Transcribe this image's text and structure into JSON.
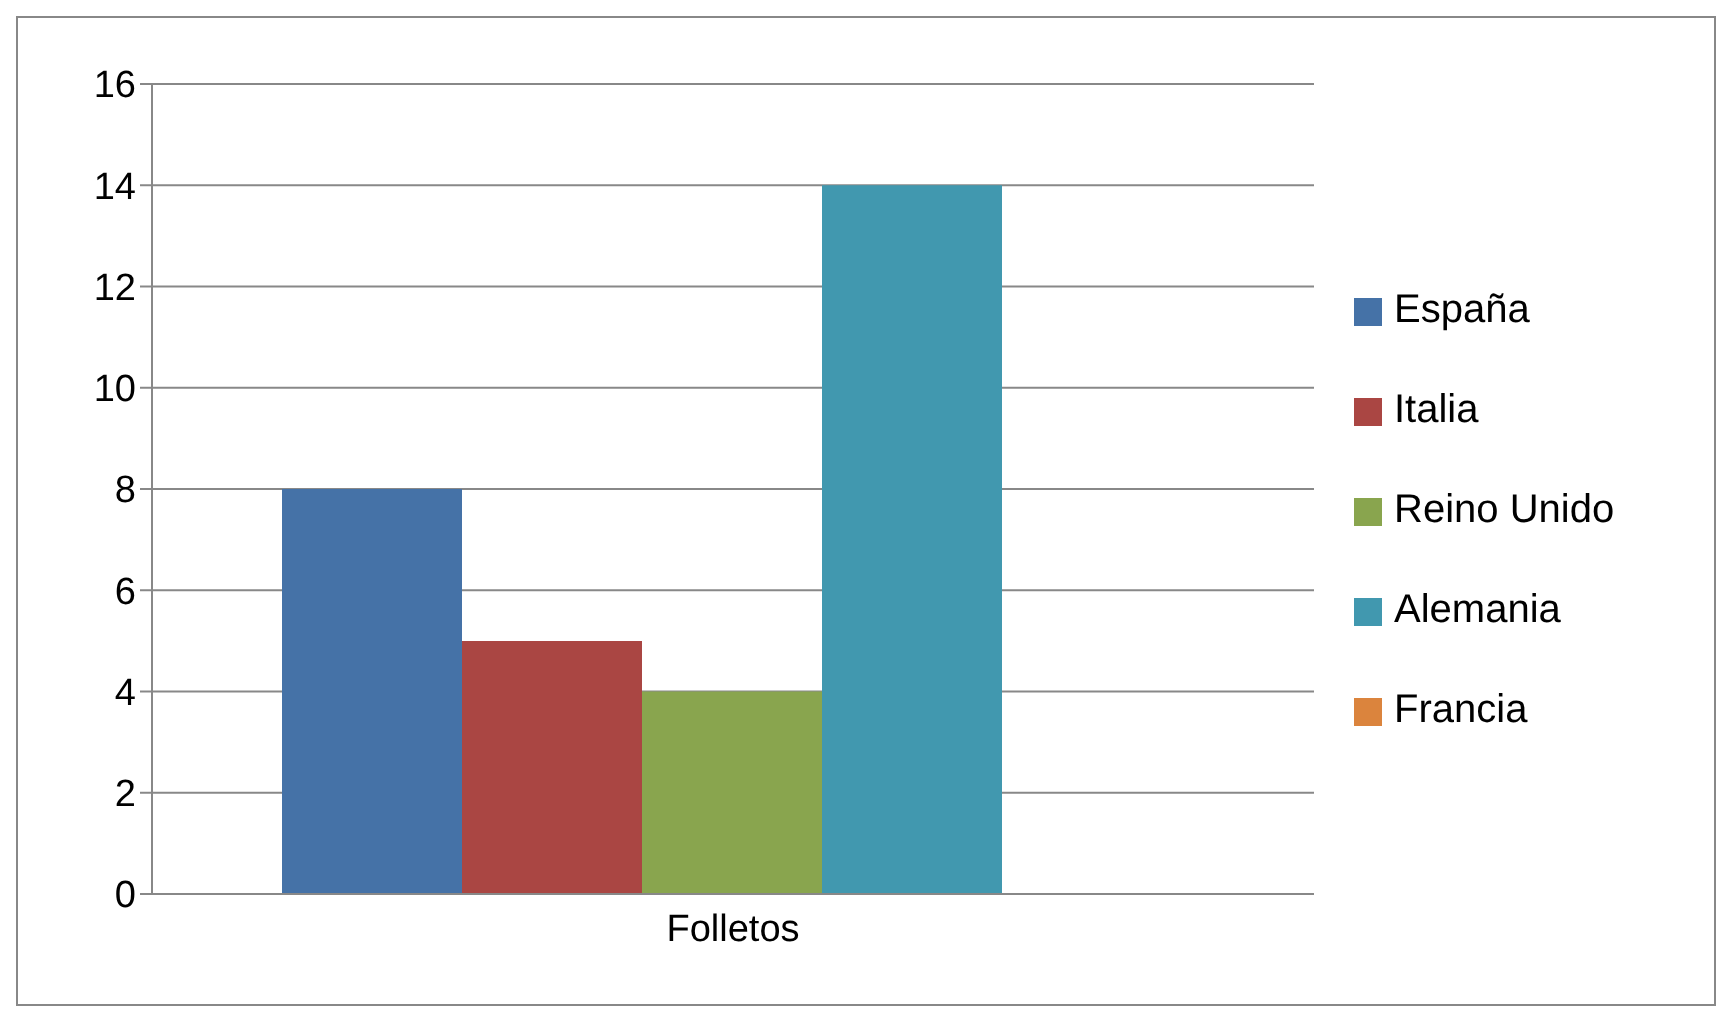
{
  "chart_data": {
    "type": "bar",
    "categories": [
      "Folletos"
    ],
    "series": [
      {
        "name": "España",
        "color": "#4572a7",
        "values": [
          8
        ]
      },
      {
        "name": "Italia",
        "color": "#aa4643",
        "values": [
          5
        ]
      },
      {
        "name": "Reino Unido",
        "color": "#89a54e",
        "values": [
          4
        ]
      },
      {
        "name": "Alemania",
        "color": "#4198af",
        "values": [
          14
        ]
      },
      {
        "name": "Francia",
        "color": "#db843d",
        "values": [
          0
        ]
      }
    ],
    "ylim": [
      0,
      16
    ],
    "yticks": [
      0,
      2,
      4,
      6,
      8,
      10,
      12,
      14,
      16
    ],
    "grid": "y",
    "legend": "right"
  }
}
